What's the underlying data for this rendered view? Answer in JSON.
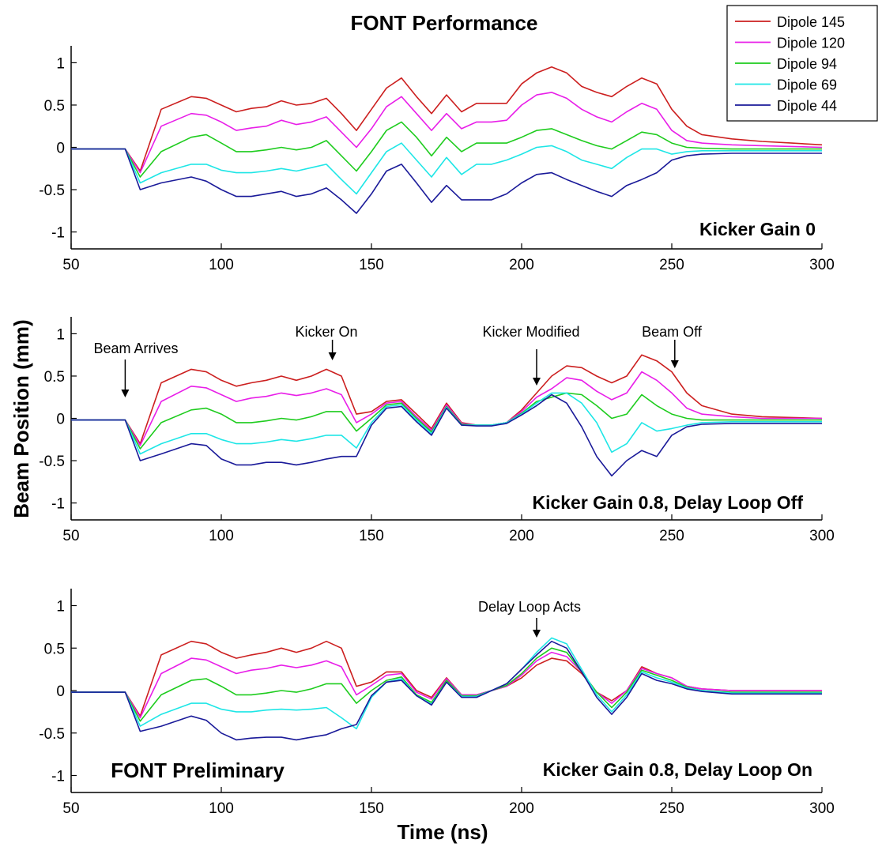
{
  "figure": {
    "title": "FONT Performance",
    "ylabel": "Beam Position (mm)",
    "xlabel": "Time (ns)",
    "watermark": "FONT Preliminary"
  },
  "legend": {
    "placement": "top-right",
    "entries": [
      {
        "name": "Dipole 145",
        "color": "#cc1f1f"
      },
      {
        "name": "Dipole 120",
        "color": "#e81ee8"
      },
      {
        "name": "Dipole 94",
        "color": "#1ecc1e"
      },
      {
        "name": "Dipole 69",
        "color": "#1ee6e6"
      },
      {
        "name": "Dipole 44",
        "color": "#1a1a99"
      }
    ]
  },
  "chart_data": [
    {
      "type": "line",
      "label": "Kicker Gain 0",
      "xlim": [
        50,
        300
      ],
      "ylim": [
        -1.2,
        1.2
      ],
      "xticks": [
        50,
        100,
        150,
        200,
        250,
        300
      ],
      "yticks": [
        -1,
        -0.5,
        0,
        0.5,
        1
      ],
      "ytick_labels": [
        "-1",
        "-0.5",
        "0",
        "0.5",
        "1"
      ],
      "grid": false,
      "x": [
        50,
        68,
        73,
        80,
        90,
        95,
        100,
        105,
        110,
        115,
        120,
        125,
        130,
        135,
        140,
        145,
        150,
        155,
        160,
        165,
        170,
        175,
        180,
        185,
        190,
        195,
        200,
        205,
        210,
        215,
        220,
        225,
        230,
        235,
        240,
        245,
        250,
        255,
        260,
        270,
        280,
        290,
        300
      ],
      "series": [
        {
          "name": "Dipole 145",
          "values": [
            -0.02,
            -0.02,
            -0.28,
            0.45,
            0.6,
            0.58,
            0.5,
            0.42,
            0.46,
            0.48,
            0.55,
            0.5,
            0.52,
            0.58,
            0.4,
            0.2,
            0.45,
            0.7,
            0.82,
            0.6,
            0.4,
            0.62,
            0.42,
            0.52,
            0.52,
            0.52,
            0.75,
            0.88,
            0.95,
            0.88,
            0.72,
            0.65,
            0.6,
            0.72,
            0.82,
            0.75,
            0.45,
            0.25,
            0.15,
            0.1,
            0.07,
            0.05,
            0.03
          ]
        },
        {
          "name": "Dipole 120",
          "values": [
            -0.02,
            -0.02,
            -0.3,
            0.25,
            0.4,
            0.38,
            0.3,
            0.2,
            0.23,
            0.25,
            0.32,
            0.27,
            0.3,
            0.36,
            0.18,
            0.0,
            0.22,
            0.48,
            0.6,
            0.4,
            0.2,
            0.4,
            0.22,
            0.3,
            0.3,
            0.32,
            0.5,
            0.62,
            0.65,
            0.58,
            0.45,
            0.36,
            0.3,
            0.42,
            0.52,
            0.45,
            0.2,
            0.08,
            0.05,
            0.03,
            0.02,
            0.01,
            0.0
          ]
        },
        {
          "name": "Dipole 94",
          "values": [
            -0.02,
            -0.02,
            -0.35,
            -0.05,
            0.12,
            0.15,
            0.05,
            -0.05,
            -0.05,
            -0.03,
            0.0,
            -0.03,
            0.0,
            0.08,
            -0.1,
            -0.28,
            -0.05,
            0.2,
            0.3,
            0.12,
            -0.1,
            0.12,
            -0.05,
            0.05,
            0.05,
            0.05,
            0.12,
            0.2,
            0.22,
            0.15,
            0.08,
            0.02,
            -0.02,
            0.08,
            0.18,
            0.15,
            0.05,
            0.0,
            -0.01,
            -0.02,
            -0.02,
            -0.02,
            -0.02
          ]
        },
        {
          "name": "Dipole 69",
          "values": [
            -0.02,
            -0.02,
            -0.42,
            -0.3,
            -0.2,
            -0.2,
            -0.27,
            -0.3,
            -0.3,
            -0.28,
            -0.25,
            -0.28,
            -0.24,
            -0.2,
            -0.38,
            -0.55,
            -0.3,
            -0.05,
            0.05,
            -0.15,
            -0.35,
            -0.12,
            -0.32,
            -0.2,
            -0.2,
            -0.15,
            -0.08,
            0.0,
            0.02,
            -0.05,
            -0.15,
            -0.2,
            -0.25,
            -0.12,
            -0.02,
            -0.02,
            -0.08,
            -0.05,
            -0.04,
            -0.04,
            -0.04,
            -0.04,
            -0.04
          ]
        },
        {
          "name": "Dipole 44",
          "values": [
            -0.02,
            -0.02,
            -0.5,
            -0.42,
            -0.35,
            -0.4,
            -0.5,
            -0.58,
            -0.58,
            -0.55,
            -0.52,
            -0.58,
            -0.55,
            -0.48,
            -0.62,
            -0.78,
            -0.55,
            -0.28,
            -0.2,
            -0.42,
            -0.65,
            -0.45,
            -0.62,
            -0.62,
            -0.62,
            -0.55,
            -0.42,
            -0.32,
            -0.3,
            -0.38,
            -0.45,
            -0.52,
            -0.58,
            -0.45,
            -0.38,
            -0.3,
            -0.15,
            -0.1,
            -0.08,
            -0.07,
            -0.07,
            -0.07,
            -0.07
          ]
        }
      ],
      "annotations": []
    },
    {
      "type": "line",
      "label": "Kicker Gain 0.8, Delay Loop Off",
      "xlim": [
        50,
        300
      ],
      "ylim": [
        -1.2,
        1.2
      ],
      "xticks": [
        50,
        100,
        150,
        200,
        250,
        300
      ],
      "yticks": [
        -1,
        -0.5,
        0,
        0.5,
        1
      ],
      "ytick_labels": [
        "-1",
        "-0.5",
        "0",
        "0.5",
        "1"
      ],
      "grid": false,
      "x": [
        50,
        68,
        73,
        80,
        90,
        95,
        100,
        105,
        110,
        115,
        120,
        125,
        130,
        135,
        140,
        145,
        150,
        155,
        160,
        165,
        170,
        175,
        180,
        185,
        190,
        195,
        200,
        205,
        210,
        215,
        220,
        225,
        230,
        235,
        240,
        245,
        250,
        255,
        260,
        270,
        280,
        290,
        300
      ],
      "series": [
        {
          "name": "Dipole 145",
          "values": [
            -0.02,
            -0.02,
            -0.3,
            0.42,
            0.58,
            0.55,
            0.45,
            0.38,
            0.42,
            0.45,
            0.5,
            0.45,
            0.5,
            0.58,
            0.5,
            0.05,
            0.08,
            0.2,
            0.22,
            0.05,
            -0.12,
            0.18,
            -0.05,
            -0.08,
            -0.08,
            -0.05,
            0.1,
            0.3,
            0.5,
            0.62,
            0.6,
            0.5,
            0.42,
            0.5,
            0.75,
            0.68,
            0.55,
            0.3,
            0.15,
            0.05,
            0.02,
            0.01,
            0.0
          ]
        },
        {
          "name": "Dipole 120",
          "values": [
            -0.02,
            -0.02,
            -0.32,
            0.2,
            0.38,
            0.36,
            0.28,
            0.2,
            0.24,
            0.26,
            0.3,
            0.27,
            0.3,
            0.35,
            0.28,
            -0.05,
            0.05,
            0.18,
            0.2,
            0.02,
            -0.14,
            0.16,
            -0.06,
            -0.08,
            -0.08,
            -0.05,
            0.08,
            0.25,
            0.35,
            0.48,
            0.45,
            0.32,
            0.22,
            0.3,
            0.55,
            0.45,
            0.3,
            0.12,
            0.05,
            0.02,
            0.0,
            0.0,
            0.0
          ]
        },
        {
          "name": "Dipole 94",
          "values": [
            -0.02,
            -0.02,
            -0.36,
            -0.05,
            0.1,
            0.12,
            0.05,
            -0.05,
            -0.05,
            -0.03,
            0.0,
            -0.02,
            0.02,
            0.08,
            0.08,
            -0.15,
            0.0,
            0.16,
            0.18,
            0.0,
            -0.16,
            0.14,
            -0.07,
            -0.08,
            -0.08,
            -0.05,
            0.06,
            0.2,
            0.25,
            0.3,
            0.28,
            0.15,
            0.0,
            0.05,
            0.28,
            0.15,
            0.05,
            0.0,
            -0.02,
            -0.02,
            -0.02,
            -0.02,
            -0.02
          ]
        },
        {
          "name": "Dipole 69",
          "values": [
            -0.02,
            -0.02,
            -0.42,
            -0.3,
            -0.18,
            -0.18,
            -0.25,
            -0.3,
            -0.3,
            -0.28,
            -0.25,
            -0.27,
            -0.24,
            -0.2,
            -0.2,
            -0.35,
            -0.05,
            0.14,
            0.16,
            -0.02,
            -0.18,
            0.13,
            -0.08,
            -0.08,
            -0.08,
            -0.05,
            0.05,
            0.18,
            0.3,
            0.3,
            0.18,
            -0.05,
            -0.4,
            -0.3,
            -0.05,
            -0.15,
            -0.12,
            -0.08,
            -0.05,
            -0.04,
            -0.04,
            -0.04,
            -0.04
          ]
        },
        {
          "name": "Dipole 44",
          "values": [
            -0.02,
            -0.02,
            -0.5,
            -0.42,
            -0.3,
            -0.32,
            -0.48,
            -0.55,
            -0.55,
            -0.52,
            -0.52,
            -0.55,
            -0.52,
            -0.48,
            -0.45,
            -0.45,
            -0.08,
            0.12,
            0.14,
            -0.04,
            -0.2,
            0.12,
            -0.08,
            -0.09,
            -0.09,
            -0.06,
            0.04,
            0.15,
            0.28,
            0.18,
            -0.1,
            -0.45,
            -0.68,
            -0.5,
            -0.38,
            -0.45,
            -0.2,
            -0.1,
            -0.07,
            -0.06,
            -0.06,
            -0.06,
            -0.06
          ]
        }
      ],
      "annotations": [
        {
          "text": "Beam Arrives",
          "x": 68,
          "y": 0.3
        },
        {
          "text": "Kicker On",
          "x": 137,
          "y": 0.65
        },
        {
          "text": "Kicker Modified",
          "x": 205,
          "y": 0.35
        },
        {
          "text": "Beam Off",
          "x": 251,
          "y": 0.55
        }
      ]
    },
    {
      "type": "line",
      "label": "Kicker Gain 0.8, Delay Loop On",
      "xlim": [
        50,
        300
      ],
      "ylim": [
        -1.2,
        1.2
      ],
      "xticks": [
        50,
        100,
        150,
        200,
        250,
        300
      ],
      "yticks": [
        -1,
        -0.5,
        0,
        0.5,
        1
      ],
      "ytick_labels": [
        "-1",
        "-0.5",
        "0",
        "0.5",
        "1"
      ],
      "grid": false,
      "x": [
        50,
        68,
        73,
        80,
        90,
        95,
        100,
        105,
        110,
        115,
        120,
        125,
        130,
        135,
        140,
        145,
        150,
        155,
        160,
        165,
        170,
        175,
        180,
        185,
        190,
        195,
        200,
        205,
        210,
        215,
        220,
        225,
        230,
        235,
        240,
        245,
        250,
        255,
        260,
        270,
        280,
        290,
        300
      ],
      "series": [
        {
          "name": "Dipole 145",
          "values": [
            -0.02,
            -0.02,
            -0.3,
            0.42,
            0.58,
            0.55,
            0.45,
            0.38,
            0.42,
            0.45,
            0.5,
            0.45,
            0.5,
            0.58,
            0.5,
            0.05,
            0.1,
            0.22,
            0.22,
            0.0,
            -0.08,
            0.15,
            -0.05,
            -0.05,
            0.0,
            0.05,
            0.15,
            0.3,
            0.38,
            0.35,
            0.2,
            -0.02,
            -0.12,
            0.0,
            0.28,
            0.2,
            0.15,
            0.05,
            0.02,
            0.0,
            0.0,
            0.0,
            0.0
          ]
        },
        {
          "name": "Dipole 120",
          "values": [
            -0.02,
            -0.02,
            -0.32,
            0.2,
            0.38,
            0.36,
            0.28,
            0.2,
            0.24,
            0.26,
            0.3,
            0.27,
            0.3,
            0.35,
            0.28,
            -0.05,
            0.06,
            0.18,
            0.2,
            -0.02,
            -0.1,
            0.14,
            -0.05,
            -0.05,
            0.0,
            0.05,
            0.18,
            0.35,
            0.45,
            0.4,
            0.22,
            -0.02,
            -0.15,
            0.0,
            0.26,
            0.2,
            0.15,
            0.05,
            0.02,
            0.0,
            0.0,
            0.0,
            0.0
          ]
        },
        {
          "name": "Dipole 94",
          "values": [
            -0.02,
            -0.02,
            -0.36,
            -0.05,
            0.12,
            0.14,
            0.05,
            -0.05,
            -0.05,
            -0.03,
            0.0,
            -0.02,
            0.02,
            0.08,
            0.08,
            -0.15,
            0.0,
            0.12,
            0.16,
            -0.05,
            -0.14,
            0.12,
            -0.06,
            -0.06,
            0.0,
            0.06,
            0.2,
            0.38,
            0.5,
            0.45,
            0.22,
            -0.02,
            -0.2,
            -0.02,
            0.24,
            0.18,
            0.12,
            0.04,
            0.0,
            -0.02,
            -0.02,
            -0.02,
            -0.02
          ]
        },
        {
          "name": "Dipole 69",
          "values": [
            -0.02,
            -0.02,
            -0.42,
            -0.28,
            -0.15,
            -0.15,
            -0.22,
            -0.25,
            -0.25,
            -0.23,
            -0.22,
            -0.23,
            -0.22,
            -0.2,
            -0.32,
            -0.45,
            -0.08,
            0.1,
            0.14,
            -0.06,
            -0.16,
            0.1,
            -0.07,
            -0.07,
            0.0,
            0.08,
            0.25,
            0.45,
            0.62,
            0.55,
            0.25,
            -0.05,
            -0.25,
            -0.05,
            0.22,
            0.15,
            0.1,
            0.03,
            0.0,
            -0.03,
            -0.03,
            -0.03,
            -0.03
          ]
        },
        {
          "name": "Dipole 44",
          "values": [
            -0.02,
            -0.02,
            -0.48,
            -0.42,
            -0.3,
            -0.35,
            -0.5,
            -0.58,
            -0.56,
            -0.55,
            -0.55,
            -0.58,
            -0.55,
            -0.52,
            -0.45,
            -0.4,
            -0.06,
            0.1,
            0.12,
            -0.06,
            -0.17,
            0.1,
            -0.08,
            -0.08,
            0.0,
            0.08,
            0.25,
            0.42,
            0.58,
            0.5,
            0.22,
            -0.08,
            -0.28,
            -0.08,
            0.2,
            0.12,
            0.08,
            0.02,
            -0.01,
            -0.04,
            -0.04,
            -0.04,
            -0.04
          ]
        }
      ],
      "annotations": [
        {
          "text": "Delay Loop Acts",
          "x": 205,
          "y": 0.5
        }
      ]
    }
  ]
}
